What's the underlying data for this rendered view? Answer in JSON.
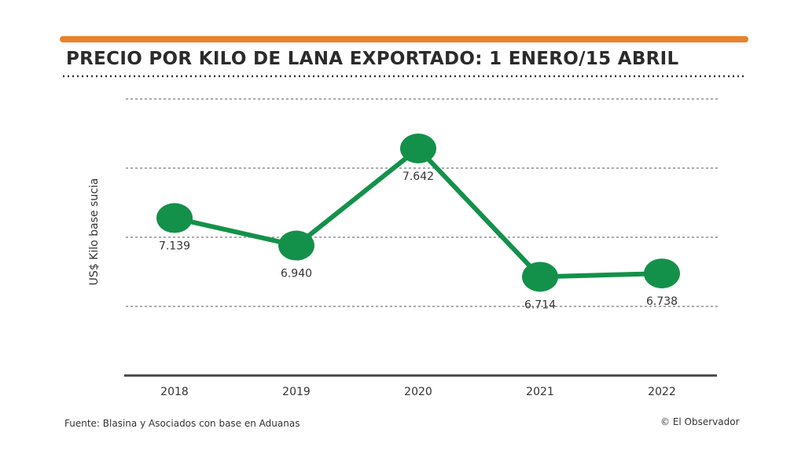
{
  "header": {
    "title": "PRECIO POR KILO DE LANA EXPORTADO: 1 ENERO/15 ABRIL",
    "accent_color": "#e8822a"
  },
  "chart_data": {
    "type": "line",
    "title": "PRECIO POR KILO DE LANA EXPORTADO: 1 ENERO/15 ABRIL",
    "categories": [
      "2018",
      "2019",
      "2020",
      "2021",
      "2022"
    ],
    "series": [
      {
        "values": [
          7.139,
          6.94,
          7.642,
          6.714,
          6.738
        ],
        "color": "#13914a"
      }
    ],
    "data_labels": [
      "7.139",
      "6.940",
      "7.642",
      "6.714",
      "6.738"
    ],
    "xlabel": "",
    "ylabel": "US$ Kilo base sucia",
    "ylim": [
      6.0,
      8.0
    ],
    "gridlines": [
      6.5,
      7.0,
      7.5,
      8.0
    ],
    "grid": true,
    "legend": "none"
  },
  "footer": {
    "source": "Fuente: Blasina y Asociados con base en Aduanas",
    "credit": "© El Observador"
  }
}
